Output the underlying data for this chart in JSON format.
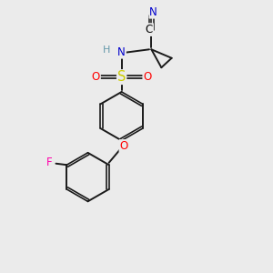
{
  "background_color": "#ebebeb",
  "fig_width": 3.0,
  "fig_height": 3.0,
  "dpi": 100,
  "atom_colors": {
    "N": "#0000cc",
    "O": "#ff0000",
    "S": "#cccc00",
    "F": "#ff00aa",
    "C": "#000000",
    "H": "#6699aa"
  },
  "bond_color": "#1a1a1a",
  "bond_width": 1.4,
  "font_size": 8.5
}
